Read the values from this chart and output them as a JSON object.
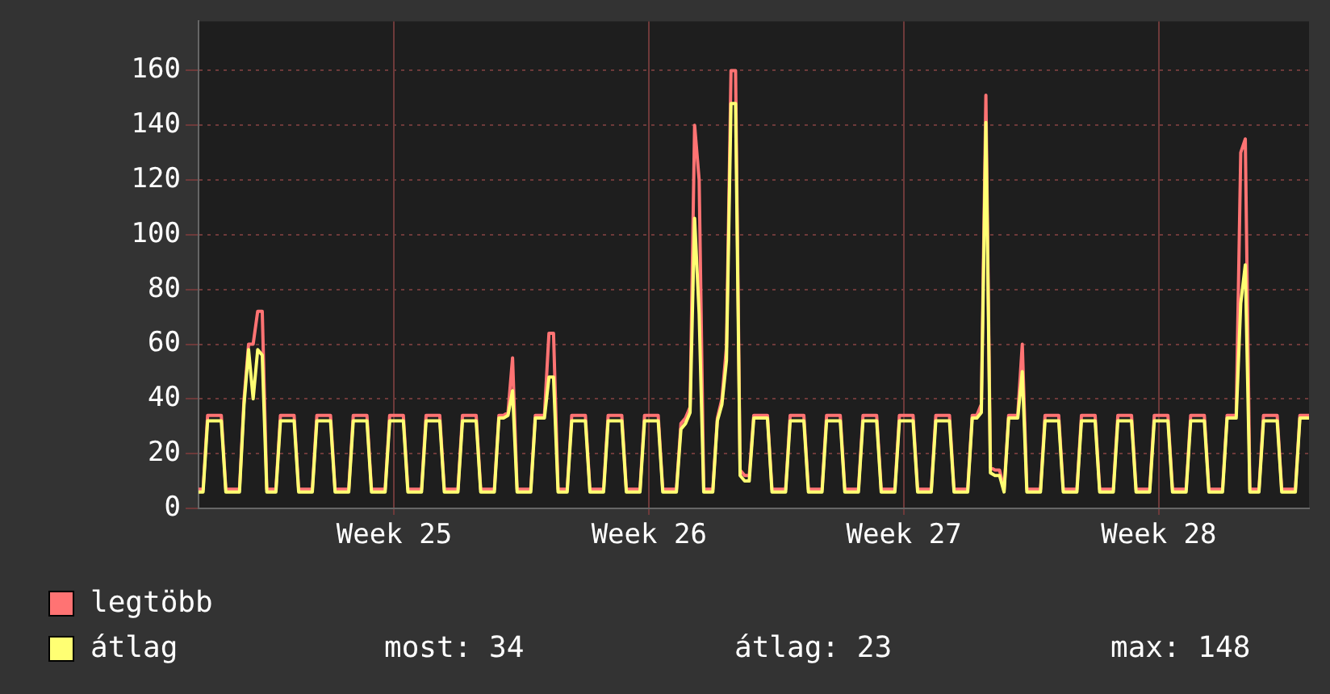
{
  "chart_data": {
    "type": "line",
    "ylim": [
      0,
      178
    ],
    "yticks": [
      0,
      20,
      40,
      60,
      80,
      100,
      120,
      140,
      160
    ],
    "grid": true,
    "legend": "bottom",
    "marker": "none",
    "line_style": "solid",
    "annotations": [
      "most: 34",
      "átlag: 23",
      "max: 148"
    ],
    "categories": [
      null,
      null,
      null,
      null,
      null,
      null,
      null,
      null,
      null,
      null,
      null,
      null,
      null,
      null,
      null,
      null,
      null,
      null,
      null,
      null,
      null,
      null,
      null,
      null,
      null,
      null,
      null,
      null,
      null,
      null,
      null,
      null,
      null,
      null,
      null,
      null,
      null,
      null,
      null,
      null,
      null,
      null,
      null,
      "Week 25",
      null,
      null,
      null,
      null,
      null,
      null,
      null,
      null,
      null,
      null,
      null,
      null,
      null,
      null,
      null,
      null,
      null,
      null,
      null,
      null,
      null,
      null,
      null,
      null,
      null,
      null,
      null,
      null,
      null,
      null,
      null,
      null,
      null,
      null,
      null,
      null,
      null,
      null,
      null,
      null,
      null,
      null,
      null,
      null,
      null,
      null,
      null,
      null,
      null,
      null,
      null,
      null,
      null,
      null,
      null,
      "Week 26",
      null,
      null,
      null,
      null,
      null,
      null,
      null,
      null,
      null,
      null,
      null,
      null,
      null,
      null,
      null,
      null,
      null,
      null,
      null,
      null,
      null,
      null,
      null,
      null,
      null,
      null,
      null,
      null,
      null,
      null,
      null,
      null,
      null,
      null,
      null,
      null,
      null,
      null,
      null,
      null,
      null,
      null,
      null,
      null,
      null,
      null,
      null,
      null,
      null,
      null,
      null,
      null,
      null,
      null,
      null,
      "Week 27",
      null,
      null,
      null,
      null,
      null,
      null,
      null,
      null,
      null,
      null,
      null,
      null,
      null,
      null,
      null,
      null,
      null,
      null,
      null,
      null,
      null,
      null,
      null,
      null,
      null,
      null,
      null,
      null,
      null,
      null,
      null,
      null,
      null,
      null,
      null,
      null,
      null,
      null,
      null,
      null,
      null,
      null,
      null,
      null,
      null,
      null,
      null,
      null,
      null,
      null,
      null,
      null,
      null,
      null,
      null,
      "Week 28",
      null,
      null,
      null,
      null,
      null,
      null,
      null,
      null,
      null,
      null,
      null,
      null,
      null,
      null,
      null,
      null,
      null,
      null,
      null,
      null,
      null,
      null,
      null,
      null,
      null,
      null,
      null,
      null,
      null,
      null,
      null,
      null,
      null
    ],
    "series": [
      {
        "name": "legtöbb",
        "color": "#ff7373",
        "values": [
          7,
          7,
          34,
          34,
          34,
          34,
          7,
          7,
          7,
          7,
          40,
          60,
          60,
          72,
          72,
          7,
          7,
          7,
          34,
          34,
          34,
          34,
          7,
          7,
          7,
          7,
          34,
          34,
          34,
          34,
          7,
          7,
          7,
          7,
          34,
          34,
          34,
          34,
          7,
          7,
          7,
          7,
          34,
          34,
          34,
          34,
          7,
          7,
          7,
          7,
          34,
          34,
          34,
          34,
          7,
          7,
          7,
          7,
          34,
          34,
          34,
          34,
          7,
          7,
          7,
          7,
          34,
          34,
          35,
          55,
          7,
          7,
          7,
          7,
          34,
          34,
          34,
          64,
          64,
          7,
          7,
          7,
          34,
          34,
          34,
          34,
          7,
          7,
          7,
          7,
          34,
          34,
          34,
          34,
          7,
          7,
          7,
          7,
          34,
          34,
          34,
          34,
          7,
          7,
          7,
          7,
          31,
          33,
          37,
          140,
          120,
          7,
          7,
          7,
          33,
          40,
          59,
          160,
          160,
          14,
          12,
          12,
          34,
          34,
          34,
          34,
          7,
          7,
          7,
          7,
          34,
          34,
          34,
          34,
          7,
          7,
          7,
          7,
          34,
          34,
          34,
          34,
          7,
          7,
          7,
          7,
          34,
          34,
          34,
          34,
          7,
          7,
          7,
          7,
          34,
          34,
          34,
          34,
          7,
          7,
          7,
          7,
          34,
          34,
          34,
          34,
          7,
          7,
          7,
          7,
          34,
          34,
          38,
          151,
          15,
          14,
          14,
          7,
          34,
          34,
          34,
          60,
          7,
          7,
          7,
          7,
          34,
          34,
          34,
          34,
          7,
          7,
          7,
          7,
          34,
          34,
          34,
          34,
          7,
          7,
          7,
          7,
          34,
          34,
          34,
          34,
          7,
          7,
          7,
          7,
          34,
          34,
          34,
          34,
          7,
          7,
          7,
          7,
          34,
          34,
          34,
          34,
          7,
          7,
          7,
          7,
          34,
          34,
          34,
          130,
          135,
          7,
          7,
          7,
          34,
          34,
          34,
          34,
          7,
          7,
          7,
          7,
          34,
          34,
          34
        ]
      },
      {
        "name": "átlag",
        "color": "#ffff73",
        "values": [
          6,
          6,
          32,
          32,
          32,
          32,
          6,
          6,
          6,
          6,
          38,
          58,
          40,
          58,
          56,
          6,
          6,
          6,
          32,
          32,
          32,
          32,
          6,
          6,
          6,
          6,
          32,
          32,
          32,
          32,
          6,
          6,
          6,
          6,
          32,
          32,
          32,
          32,
          6,
          6,
          6,
          6,
          32,
          32,
          32,
          32,
          6,
          6,
          6,
          6,
          32,
          32,
          32,
          32,
          6,
          6,
          6,
          6,
          32,
          32,
          32,
          32,
          6,
          6,
          6,
          6,
          33,
          33,
          34,
          43,
          6,
          6,
          6,
          6,
          33,
          33,
          33,
          48,
          48,
          6,
          6,
          6,
          32,
          32,
          32,
          32,
          6,
          6,
          6,
          6,
          32,
          32,
          32,
          32,
          6,
          6,
          6,
          6,
          32,
          32,
          32,
          32,
          6,
          6,
          6,
          6,
          29,
          31,
          35,
          106,
          71,
          6,
          6,
          6,
          32,
          38,
          54,
          148,
          148,
          12,
          10,
          10,
          33,
          33,
          33,
          33,
          6,
          6,
          6,
          6,
          32,
          32,
          32,
          32,
          6,
          6,
          6,
          6,
          32,
          32,
          32,
          32,
          6,
          6,
          6,
          6,
          32,
          32,
          32,
          32,
          6,
          6,
          6,
          6,
          32,
          32,
          32,
          32,
          6,
          6,
          6,
          6,
          32,
          32,
          32,
          32,
          6,
          6,
          6,
          6,
          33,
          33,
          35,
          141,
          13,
          12,
          12,
          6,
          33,
          33,
          33,
          50,
          6,
          6,
          6,
          6,
          32,
          32,
          32,
          32,
          6,
          6,
          6,
          6,
          32,
          32,
          32,
          32,
          6,
          6,
          6,
          6,
          32,
          32,
          32,
          32,
          6,
          6,
          6,
          6,
          32,
          32,
          32,
          32,
          6,
          6,
          6,
          6,
          32,
          32,
          32,
          32,
          6,
          6,
          6,
          6,
          33,
          33,
          33,
          75,
          89,
          6,
          6,
          6,
          32,
          32,
          32,
          32,
          6,
          6,
          6,
          6,
          33,
          33,
          33
        ]
      }
    ]
  }
}
